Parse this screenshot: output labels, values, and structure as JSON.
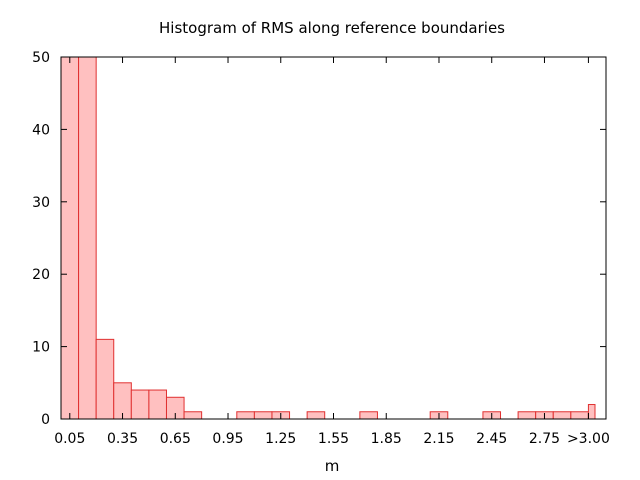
{
  "chart_data": {
    "type": "bar",
    "title": "Histogram of RMS along reference boundaries",
    "xlabel": "m",
    "ylabel": "",
    "ylim": [
      0,
      50
    ],
    "yticks": [
      0,
      10,
      20,
      30,
      40,
      50
    ],
    "xtick_labels": [
      "0.05",
      "0.35",
      "0.65",
      "0.95",
      "1.25",
      "1.55",
      "1.85",
      "2.15",
      "2.45",
      "2.75",
      ">3.00"
    ],
    "bin_width": 0.1,
    "bin_starts": [
      0.0,
      0.1,
      0.2,
      0.3,
      0.4,
      0.5,
      0.6,
      0.7,
      0.8,
      0.9,
      1.0,
      1.1,
      1.2,
      1.3,
      1.4,
      1.5,
      1.6,
      1.7,
      1.8,
      1.9,
      2.0,
      2.1,
      2.2,
      2.3,
      2.4,
      2.5,
      2.6,
      2.7,
      2.8,
      2.9,
      3.0
    ],
    "values": [
      50,
      50,
      11,
      5,
      4,
      4,
      3,
      1,
      0,
      0,
      1,
      1,
      1,
      0,
      1,
      0,
      0,
      1,
      0,
      0,
      0,
      1,
      0,
      0,
      1,
      0,
      1,
      1,
      1,
      1,
      2
    ],
    "grid": false,
    "bar_color": "#ffc0c0",
    "bar_edge_color": "#e03030"
  }
}
